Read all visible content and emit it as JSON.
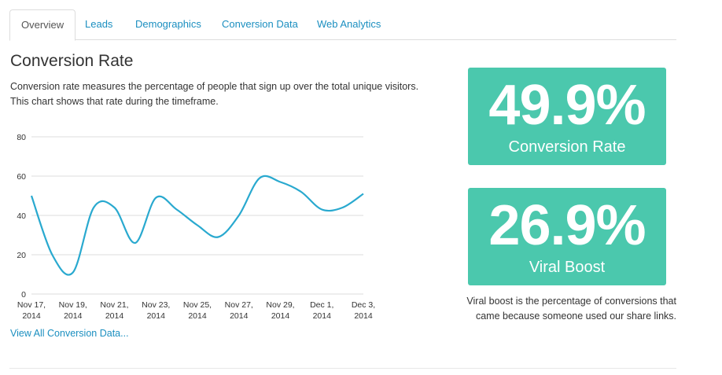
{
  "tabs": [
    {
      "label": "Overview",
      "active": true
    },
    {
      "label": "Leads",
      "active": false
    },
    {
      "label": "Demographics",
      "active": false
    },
    {
      "label": "Conversion Data",
      "active": false
    },
    {
      "label": "Web Analytics",
      "active": false
    }
  ],
  "main": {
    "title": "Conversion Rate",
    "description": "Conversion rate measures the percentage of people that sign up over the total unique visitors. This chart shows that rate during the timeframe.",
    "view_all_link": "View All Conversion Data..."
  },
  "stats": [
    {
      "value": "49.9%",
      "label": "Conversion Rate"
    },
    {
      "value": "26.9%",
      "label": "Viral Boost"
    }
  ],
  "viral_note": "Viral boost is the percentage of conversions that came because someone used our share links.",
  "colors": {
    "accent": "#4bc8ad",
    "link": "#1b8fc0",
    "line": "#29a9cf",
    "grid": "#dddddd"
  },
  "chart_data": {
    "type": "line",
    "title": "",
    "xlabel": "",
    "ylabel": "",
    "ylim": [
      0,
      80
    ],
    "yticks": [
      0,
      20,
      40,
      60,
      80
    ],
    "grid": true,
    "x_tick_labels": [
      [
        "Nov 17,",
        "2014"
      ],
      [
        "Nov 19,",
        "2014"
      ],
      [
        "Nov 21,",
        "2014"
      ],
      [
        "Nov 23,",
        "2014"
      ],
      [
        "Nov 25,",
        "2014"
      ],
      [
        "Nov 27,",
        "2014"
      ],
      [
        "Nov 29,",
        "2014"
      ],
      [
        "Dec 1,",
        "2014"
      ],
      [
        "Dec 3,",
        "2014"
      ]
    ],
    "series": [
      {
        "x": [
          "2014-11-17",
          "2014-11-18",
          "2014-11-19",
          "2014-11-20",
          "2014-11-21",
          "2014-11-22",
          "2014-11-23",
          "2014-11-24",
          "2014-11-25",
          "2014-11-26",
          "2014-11-27",
          "2014-11-28",
          "2014-11-29",
          "2014-11-30",
          "2014-12-01",
          "2014-12-02",
          "2014-12-03"
        ],
        "values": [
          50,
          20,
          11,
          44,
          44,
          26,
          49,
          43,
          35,
          29,
          40,
          59,
          57,
          52,
          43,
          44,
          51
        ]
      }
    ]
  }
}
